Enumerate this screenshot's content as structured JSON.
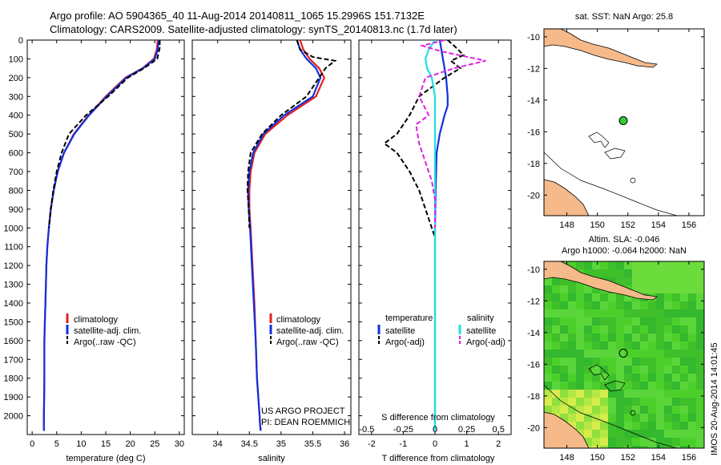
{
  "header": {
    "line1": "Argo profile: AO 5904365_40 11-Aug-2014 20140811_1065 15.2996S 151.7132E",
    "line2": "Climatology: CARS2009. Satellite-adjusted climatology: synTS_20140813.nc (1.7d later)"
  },
  "colors": {
    "climatology": "#e02020",
    "satellite": "#1030e0",
    "argo": "#000000",
    "satellite_salinity": "#20e0e0",
    "argo_salinity": "#e020e0",
    "land": "#f5b98a",
    "marker": "#33cc33"
  },
  "chart_data": [
    {
      "type": "line",
      "name": "temperature-profile",
      "xlabel": "temperature (deg C)",
      "xlim": [
        -1,
        31
      ],
      "xticks": [
        0,
        5,
        10,
        15,
        20,
        25,
        30
      ],
      "ylim": [
        2100,
        0
      ],
      "yticks": [
        0,
        100,
        200,
        300,
        400,
        500,
        600,
        700,
        800,
        900,
        1000,
        1100,
        1200,
        1300,
        1400,
        1500,
        1600,
        1700,
        1800,
        1900,
        2000
      ],
      "legend": [
        "climatology",
        "satellite-adj. clim.",
        "Argo(..raw -QC)"
      ],
      "series": [
        {
          "name": "climatology",
          "style": "solid",
          "color": "#e02020",
          "x": [
            25.6,
            25.4,
            24.8,
            22.5,
            19.0,
            15.0,
            11.5,
            8.5,
            6.5,
            5.2,
            4.4,
            3.8,
            3.4,
            3.1,
            2.9,
            2.8,
            2.7,
            2.6,
            2.5,
            2.5,
            2.4,
            2.4
          ],
          "y": [
            0,
            50,
            100,
            150,
            200,
            300,
            400,
            500,
            600,
            700,
            800,
            900,
            1000,
            1100,
            1200,
            1300,
            1400,
            1500,
            1600,
            1800,
            2000,
            2080
          ]
        },
        {
          "name": "satellite-adj. clim.",
          "style": "solid",
          "color": "#1030e0",
          "x": [
            25.8,
            25.6,
            25.0,
            22.6,
            19.2,
            15.2,
            11.6,
            8.6,
            6.5,
            5.2,
            4.4,
            3.8,
            3.4,
            3.1,
            2.9,
            2.8,
            2.7,
            2.6,
            2.5,
            2.5,
            2.4,
            2.4
          ],
          "y": [
            0,
            50,
            100,
            150,
            200,
            300,
            400,
            500,
            600,
            700,
            800,
            900,
            1000,
            1100,
            1200,
            1300,
            1400,
            1500,
            1600,
            1800,
            2000,
            2080
          ]
        },
        {
          "name": "Argo(..raw -QC)",
          "style": "dashed",
          "color": "#000000",
          "x": [
            26.0,
            26.0,
            25.5,
            22.8,
            19.5,
            15.5,
            11.0,
            7.5,
            6.0,
            5.0,
            4.3,
            3.8,
            3.4
          ],
          "y": [
            0,
            40,
            100,
            150,
            200,
            300,
            400,
            500,
            600,
            700,
            800,
            900,
            1000
          ]
        }
      ]
    },
    {
      "type": "line",
      "name": "salinity-profile",
      "xlabel": "salinity",
      "xlim": [
        33.6,
        36.1
      ],
      "xticks": [
        34,
        34.5,
        35,
        35.5,
        36
      ],
      "ylim": [
        2100,
        0
      ],
      "legend": [
        "climatology",
        "satellite-adj. clim.",
        "Argo(..raw -QC)"
      ],
      "annotation": [
        "US ARGO PROJECT",
        "PI: DEAN ROEMMICH"
      ],
      "series": [
        {
          "name": "climatology",
          "style": "solid",
          "color": "#e02020",
          "x": [
            35.3,
            35.35,
            35.45,
            35.6,
            35.68,
            35.55,
            35.1,
            34.75,
            34.58,
            34.52,
            34.5,
            34.5,
            34.52,
            34.55,
            34.58,
            34.6,
            34.62,
            34.64,
            34.66,
            34.67,
            34.68
          ],
          "y": [
            0,
            50,
            100,
            150,
            200,
            300,
            400,
            500,
            600,
            700,
            800,
            900,
            1000,
            1200,
            1400,
            1600,
            1800,
            1900,
            2000,
            2050,
            2080
          ]
        },
        {
          "name": "satellite-adj. clim.",
          "style": "solid",
          "color": "#1030e0",
          "x": [
            35.25,
            35.3,
            35.4,
            35.55,
            35.62,
            35.5,
            35.05,
            34.72,
            34.56,
            34.5,
            34.48,
            34.49,
            34.51,
            34.54,
            34.57,
            34.6,
            34.62,
            34.64,
            34.66,
            34.67,
            34.68
          ],
          "y": [
            0,
            50,
            100,
            150,
            200,
            300,
            400,
            500,
            600,
            700,
            800,
            900,
            1000,
            1200,
            1400,
            1600,
            1800,
            1900,
            2000,
            2050,
            2080
          ]
        },
        {
          "name": "Argo(..raw -QC)",
          "style": "dashed",
          "color": "#000000",
          "x": [
            35.25,
            35.3,
            35.5,
            35.85,
            35.7,
            35.6,
            35.4,
            35.0,
            34.7,
            34.52,
            34.48,
            34.47,
            34.49,
            34.5
          ],
          "y": [
            0,
            50,
            90,
            110,
            150,
            200,
            300,
            400,
            500,
            600,
            700,
            800,
            900,
            1000
          ]
        }
      ]
    },
    {
      "type": "line",
      "name": "difference-profile",
      "xlabel": "T difference from climatology",
      "xlabel_top": "S difference from climatology",
      "xlim": [
        -2.4,
        2.4
      ],
      "xticks": [
        -2,
        -1,
        0,
        1,
        2
      ],
      "xticks_salinity": [
        "-0.5",
        "-0.25",
        "0",
        "0.25",
        "0.5"
      ],
      "ylim": [
        2100,
        0
      ],
      "legend_titles": [
        "temperature",
        "salinity"
      ],
      "legend": [
        "satellite",
        "Argo(-adj)",
        "satellite",
        "Argo(-adj)"
      ],
      "series": [
        {
          "name": "temperature satellite",
          "style": "solid",
          "color": "#1030e0",
          "x": [
            0.15,
            0.2,
            0.25,
            0.3,
            0.35,
            0.4,
            0.4,
            0.3,
            0.15,
            0.05,
            0.02,
            0.0,
            0.0,
            0.0
          ],
          "y": [
            0,
            50,
            100,
            150,
            200,
            300,
            350,
            400,
            500,
            600,
            800,
            1000,
            1500,
            2080
          ]
        },
        {
          "name": "temperature Argo(-adj)",
          "style": "dashed",
          "color": "#000000",
          "x": [
            0.4,
            0.6,
            0.9,
            0.5,
            0.8,
            0.3,
            -0.5,
            -0.8,
            -1.0,
            -1.2,
            -1.6,
            -1.2,
            -0.8,
            -0.5,
            -0.3,
            -0.1,
            0.0
          ],
          "y": [
            0,
            30,
            80,
            110,
            150,
            200,
            300,
            400,
            450,
            500,
            550,
            600,
            700,
            800,
            900,
            1000,
            1050
          ]
        },
        {
          "name": "salinity satellite",
          "style": "solid",
          "color": "#20e0e0",
          "x": [
            0.0,
            -0.2,
            -0.3,
            -0.25,
            -0.1,
            0.0,
            0.0,
            0.0,
            0.0,
            0.0,
            0.0
          ],
          "y": [
            0,
            50,
            100,
            150,
            200,
            300,
            400,
            600,
            1000,
            1500,
            2080
          ]
        },
        {
          "name": "salinity Argo(-adj)",
          "style": "dashed",
          "color": "#e020e0",
          "x": [
            0.3,
            -0.4,
            0.2,
            1.6,
            0.6,
            -0.3,
            -0.5,
            -0.2,
            -0.6,
            -0.5,
            -0.3,
            -0.1,
            0.0,
            0.0
          ],
          "y": [
            0,
            30,
            60,
            110,
            150,
            200,
            300,
            400,
            450,
            550,
            650,
            750,
            850,
            1000
          ]
        }
      ]
    },
    {
      "type": "map",
      "name": "sst-map",
      "title": "sat. SST: NaN Argo: 25.8",
      "xlim": [
        146.5,
        157
      ],
      "ylim": [
        -21.3,
        -9.5
      ],
      "xticks": [
        148,
        150,
        152,
        154,
        156
      ],
      "yticks": [
        -10,
        -12,
        -14,
        -16,
        -18,
        -20
      ],
      "marker": [
        151.7,
        -15.3
      ]
    },
    {
      "type": "map",
      "name": "sla-map",
      "title_lines": [
        "Altim. SLA: -0.046",
        "Argo h1000: -0.064 h2000: NaN"
      ],
      "xlim": [
        146.5,
        157
      ],
      "ylim": [
        -21.3,
        -9.5
      ],
      "xticks": [
        148,
        150,
        152,
        154,
        156
      ],
      "yticks": [
        -10,
        -12,
        -14,
        -16,
        -18,
        -20
      ],
      "marker": [
        151.7,
        -15.3
      ]
    }
  ],
  "stamp": "IMOS 20-Aug-2014 14:01:45"
}
